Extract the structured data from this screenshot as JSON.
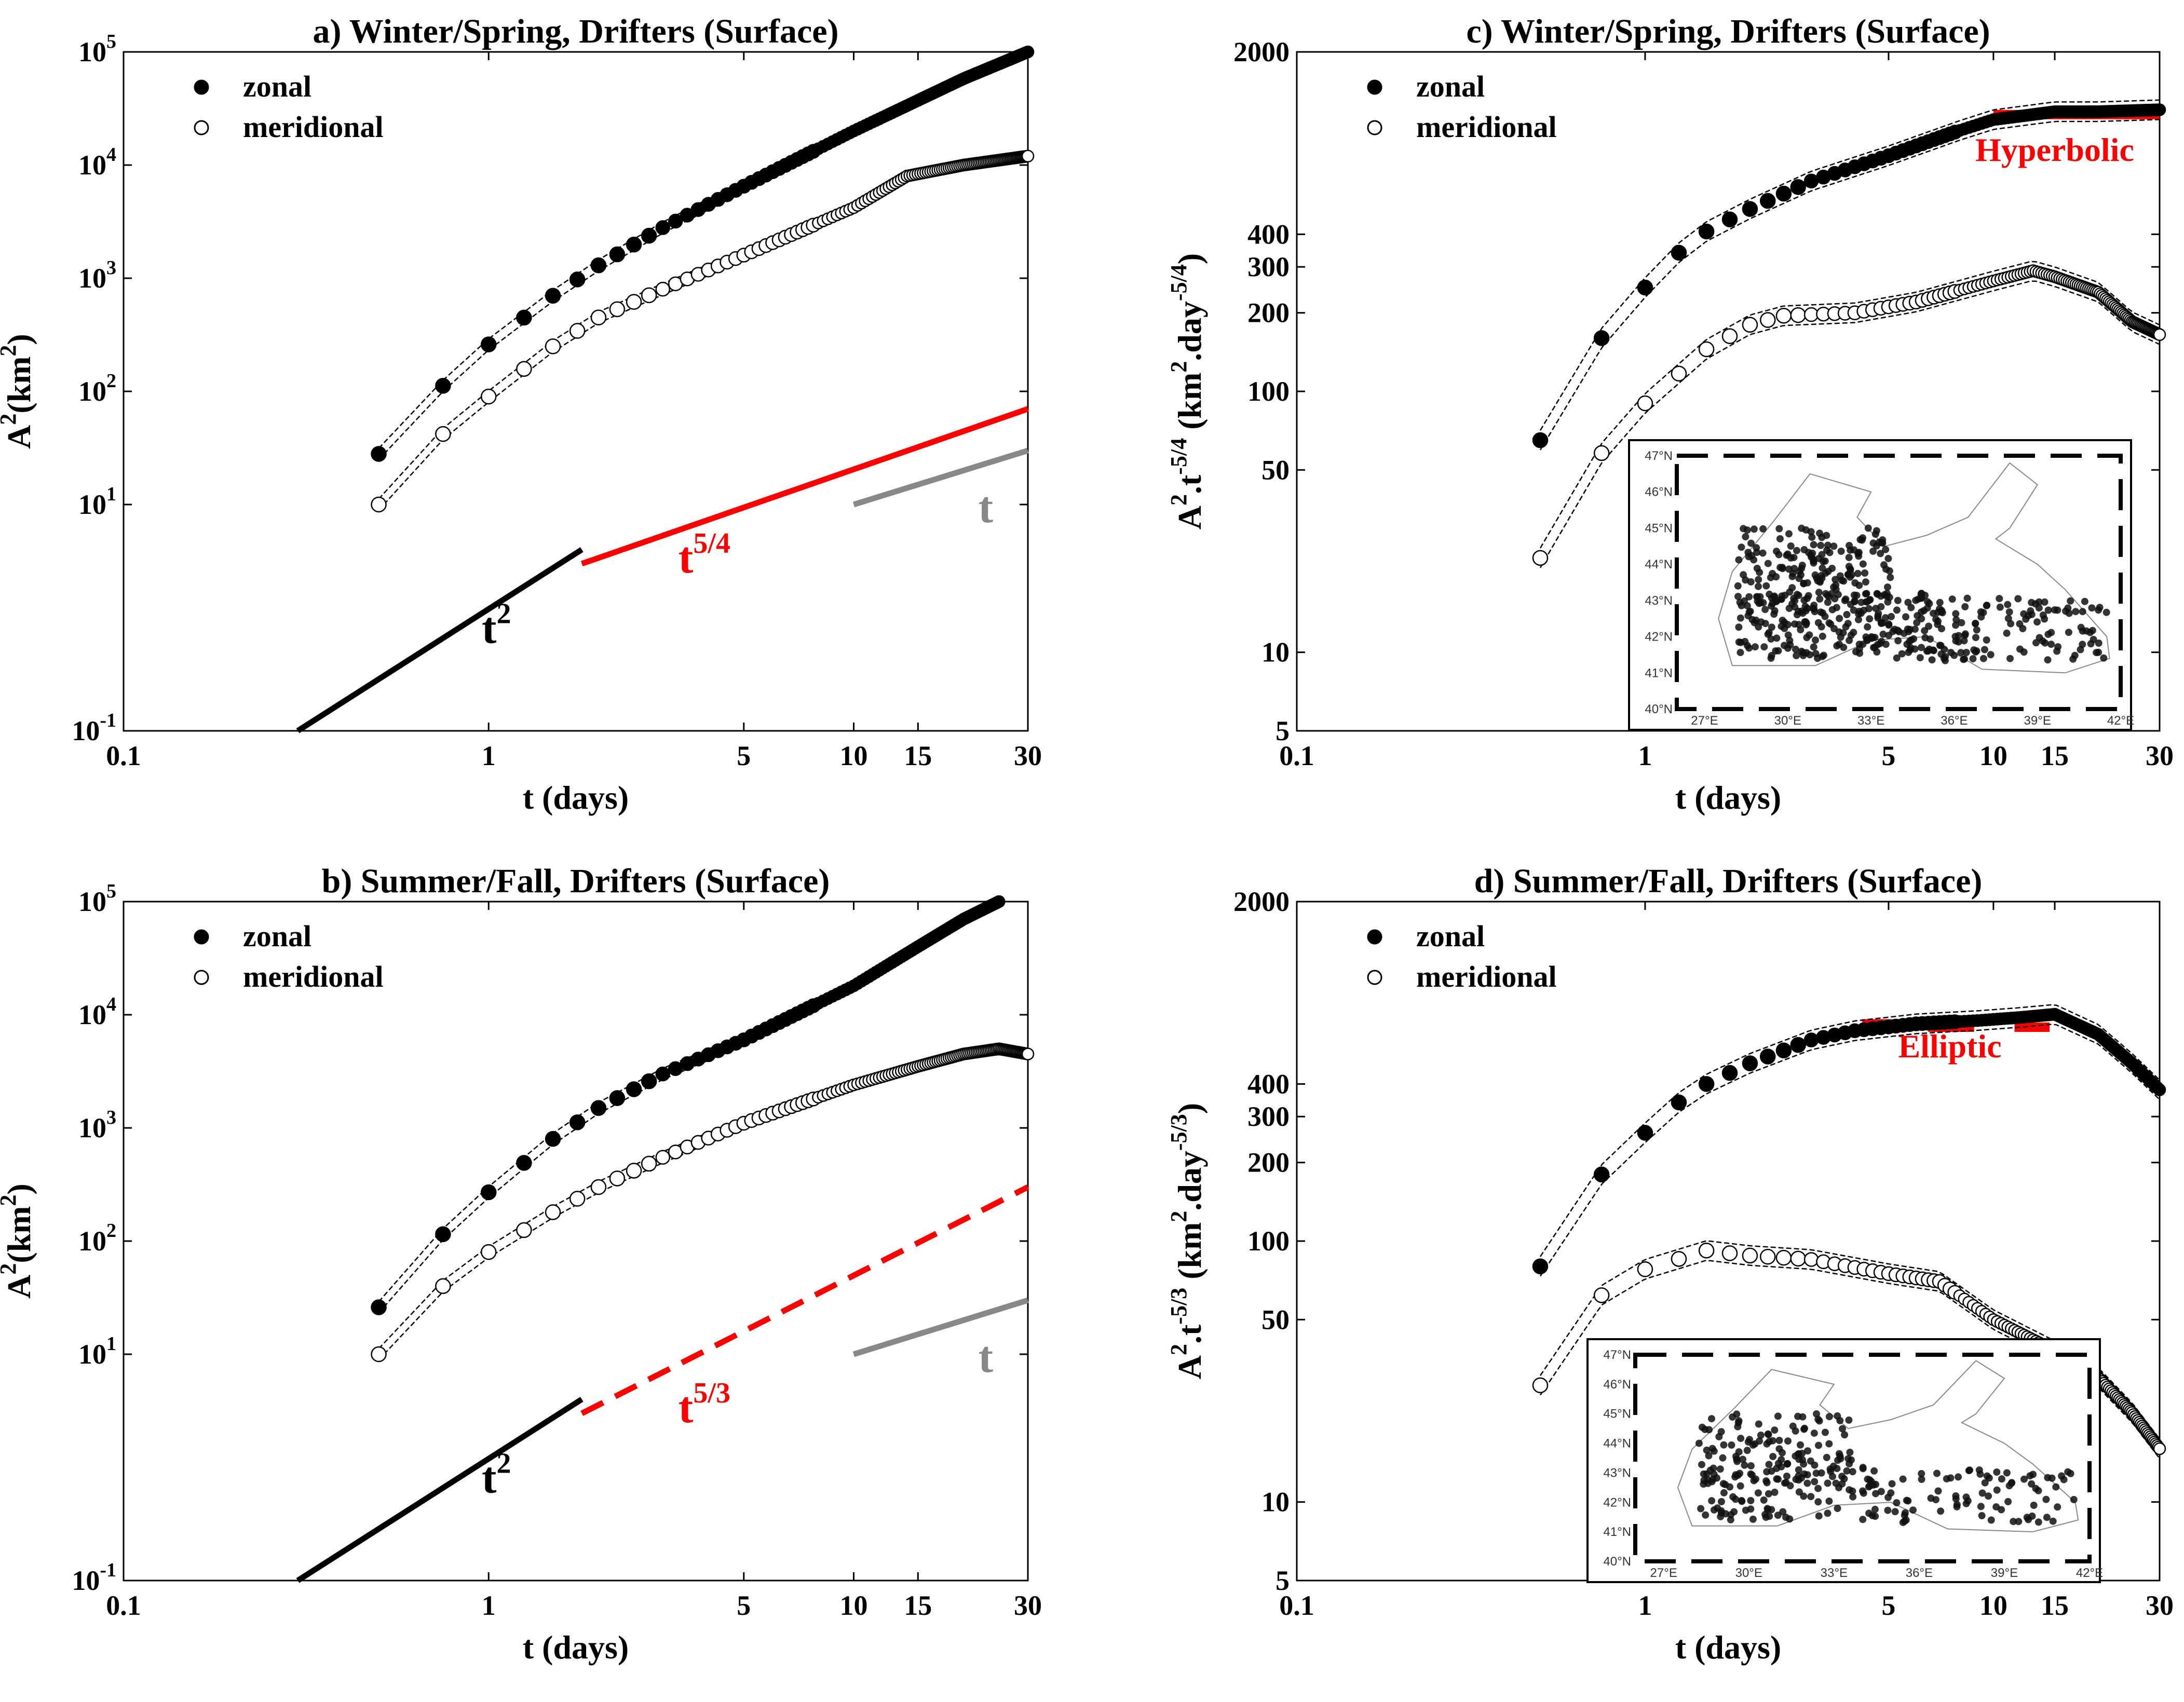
{
  "colors": {
    "axis": "#000000",
    "reference_t2": "#000000",
    "reference_red": "#ff0000",
    "reference_t": "#888888",
    "plateau": "#ff0000"
  },
  "chart_data": [
    {
      "id": "a",
      "type": "scatter",
      "title": "a) Winter/Spring, Drifters (Surface)",
      "xlabel": "t (days)",
      "ylabel_base": "A",
      "ylabel_sup": "2",
      "ylabel_unit": "(km",
      "ylabel_unit_sup": "2",
      "ylabel_unit_close": ")",
      "xscale": "log",
      "yscale": "log",
      "xlim": [
        0.1,
        30
      ],
      "ylim": [
        0.1,
        100000
      ],
      "xticks": [
        0.1,
        1,
        5,
        10,
        15,
        30
      ],
      "xtick_labels": [
        "0.1",
        "1",
        "5",
        "10",
        "15",
        "30"
      ],
      "yticks": [
        0.1,
        10,
        100,
        1000,
        10000,
        100000
      ],
      "ytick_base": "10",
      "ytick_exps": [
        "-1",
        "1",
        "2",
        "3",
        "4",
        "5"
      ],
      "legend": {
        "position": "top-left",
        "entries": [
          "zonal",
          "meridional"
        ]
      },
      "series": [
        {
          "name": "zonal",
          "marker": "filled",
          "anchors": [
            [
              0.5,
              28
            ],
            [
              0.75,
              112
            ],
            [
              1,
              260
            ],
            [
              1.5,
              700
            ],
            [
              2,
              1300
            ],
            [
              3,
              2800
            ],
            [
              5,
              6500
            ],
            [
              10,
              20000
            ],
            [
              20,
              58000
            ],
            [
              30,
              100000
            ]
          ]
        },
        {
          "name": "meridional",
          "marker": "open",
          "anchors": [
            [
              0.5,
              10
            ],
            [
              0.75,
              42
            ],
            [
              1,
              90
            ],
            [
              1.5,
              250
            ],
            [
              2,
              450
            ],
            [
              3,
              800
            ],
            [
              5,
              1600
            ],
            [
              10,
              4200
            ],
            [
              14,
              8000
            ],
            [
              20,
              10000
            ],
            [
              30,
              12000
            ]
          ]
        }
      ],
      "reference_lines": [
        {
          "label_base": "t",
          "label_sup": "2",
          "color": "#000000",
          "dashed": false,
          "from": [
            0.3,
            0.1
          ],
          "to": [
            1.8,
            4
          ],
          "label_at": [
            1.05,
            0.6
          ]
        },
        {
          "label_base": "t",
          "label_sup": "5/4",
          "color": "#ff0000",
          "dashed": false,
          "from": [
            1.8,
            3
          ],
          "to": [
            30,
            70
          ],
          "label_at": [
            3.9,
            2.5
          ]
        },
        {
          "label_base": "t",
          "label_sup": "",
          "color": "#888888",
          "dashed": false,
          "from": [
            10,
            10
          ],
          "to": [
            30,
            30
          ],
          "label_at": [
            23,
            7
          ]
        }
      ]
    },
    {
      "id": "b",
      "type": "scatter",
      "title": "b) Summer/Fall, Drifters (Surface)",
      "xlabel": "t (days)",
      "ylabel_base": "A",
      "ylabel_sup": "2",
      "ylabel_unit": "(km",
      "ylabel_unit_sup": "2",
      "ylabel_unit_close": ")",
      "xscale": "log",
      "yscale": "log",
      "xlim": [
        0.1,
        30
      ],
      "ylim": [
        0.1,
        100000
      ],
      "xticks": [
        0.1,
        1,
        5,
        10,
        15,
        30
      ],
      "xtick_labels": [
        "0.1",
        "1",
        "5",
        "10",
        "15",
        "30"
      ],
      "yticks": [
        0.1,
        10,
        100,
        1000,
        10000,
        100000
      ],
      "ytick_base": "10",
      "ytick_exps": [
        "-1",
        "1",
        "2",
        "3",
        "4",
        "5"
      ],
      "legend": {
        "position": "top-left",
        "entries": [
          "zonal",
          "meridional"
        ]
      },
      "series": [
        {
          "name": "zonal",
          "marker": "filled",
          "anchors": [
            [
              0.5,
              26
            ],
            [
              0.75,
              115
            ],
            [
              1,
              270
            ],
            [
              1.5,
              800
            ],
            [
              2,
              1500
            ],
            [
              3,
              3000
            ],
            [
              5,
              6000
            ],
            [
              10,
              18000
            ],
            [
              15,
              40000
            ],
            [
              20,
              70000
            ],
            [
              25,
              100000
            ]
          ]
        },
        {
          "name": "meridional",
          "marker": "open",
          "anchors": [
            [
              0.5,
              10
            ],
            [
              0.75,
              40
            ],
            [
              1,
              80
            ],
            [
              1.5,
              180
            ],
            [
              2,
              300
            ],
            [
              3,
              550
            ],
            [
              5,
              1100
            ],
            [
              10,
              2400
            ],
            [
              15,
              3500
            ],
            [
              20,
              4500
            ],
            [
              25,
              5000
            ],
            [
              30,
              4500
            ]
          ]
        }
      ],
      "reference_lines": [
        {
          "label_base": "t",
          "label_sup": "2",
          "color": "#000000",
          "dashed": false,
          "from": [
            0.3,
            0.1
          ],
          "to": [
            1.8,
            4
          ],
          "label_at": [
            1.05,
            0.6
          ]
        },
        {
          "label_base": "t",
          "label_sup": "5/3",
          "color": "#ff0000",
          "dashed": true,
          "from": [
            1.8,
            3
          ],
          "to": [
            30,
            300
          ],
          "label_at": [
            3.9,
            2.5
          ]
        },
        {
          "label_base": "t",
          "label_sup": "",
          "color": "#888888",
          "dashed": false,
          "from": [
            10,
            10
          ],
          "to": [
            30,
            30
          ],
          "label_at": [
            23,
            7
          ]
        }
      ]
    },
    {
      "id": "c",
      "type": "scatter",
      "title": "c) Winter/Spring, Drifters (Surface)",
      "xlabel": "t (days)",
      "ylabel_base": "A",
      "ylabel_sup": "2",
      "ylabel_mid": ".t",
      "ylabel_mid_sup": "-5/4",
      "ylabel_unit": "(km",
      "ylabel_unit_sup": "2",
      "ylabel_unit_mid": ".day",
      "ylabel_unit_mid_sup": "-5/4",
      "ylabel_unit_close": ")",
      "xscale": "log",
      "yscale": "log",
      "xlim": [
        0.1,
        30
      ],
      "ylim": [
        5,
        2000
      ],
      "xticks": [
        0.1,
        1,
        5,
        10,
        15,
        30
      ],
      "xtick_labels": [
        "0.1",
        "1",
        "5",
        "10",
        "15",
        "30"
      ],
      "yticks": [
        5,
        10,
        50,
        100,
        200,
        300,
        400,
        2000
      ],
      "ytick_labels": [
        "5",
        "10",
        "50",
        "100",
        "200",
        "300",
        "400",
        "2000"
      ],
      "legend": {
        "position": "top-left",
        "entries": [
          "zonal",
          "meridional"
        ]
      },
      "regime_label": "Hyperbolic",
      "plateaus": [
        [
          10,
          30,
          1150
        ]
      ],
      "series": [
        {
          "name": "zonal",
          "marker": "filled",
          "anchors": [
            [
              0.5,
              65
            ],
            [
              0.75,
              160
            ],
            [
              1,
              250
            ],
            [
              1.25,
              340
            ],
            [
              1.5,
              410
            ],
            [
              2,
              500
            ],
            [
              3,
              640
            ],
            [
              5,
              800
            ],
            [
              8,
              1000
            ],
            [
              10,
              1100
            ],
            [
              15,
              1180
            ],
            [
              20,
              1180
            ],
            [
              30,
              1200
            ]
          ]
        },
        {
          "name": "meridional",
          "marker": "open",
          "anchors": [
            [
              0.5,
              23
            ],
            [
              0.75,
              58
            ],
            [
              1,
              90
            ],
            [
              1.5,
              145
            ],
            [
              2,
              180
            ],
            [
              2.5,
              195
            ],
            [
              4,
              200
            ],
            [
              6,
              220
            ],
            [
              10,
              265
            ],
            [
              13,
              290
            ],
            [
              15,
              275
            ],
            [
              20,
              240
            ],
            [
              25,
              185
            ],
            [
              30,
              165
            ]
          ]
        }
      ],
      "inset": {
        "x_labels": [
          "27°E",
          "30°E",
          "33°E",
          "36°E",
          "39°E",
          "42°E"
        ],
        "y_labels": [
          "47°N",
          "46°N",
          "45°N",
          "44°N",
          "43°N",
          "42°N",
          "41°N",
          "40°N"
        ]
      }
    },
    {
      "id": "d",
      "type": "scatter",
      "title": "d) Summer/Fall, Drifters (Surface)",
      "xlabel": "t (days)",
      "ylabel_base": "A",
      "ylabel_sup": "2",
      "ylabel_mid": ".t",
      "ylabel_mid_sup": "-5/3",
      "ylabel_unit": "(km",
      "ylabel_unit_sup": "2",
      "ylabel_unit_mid": ".day",
      "ylabel_unit_mid_sup": "-5/3",
      "ylabel_unit_close": ")",
      "xscale": "log",
      "yscale": "log",
      "xlim": [
        0.1,
        30
      ],
      "ylim": [
        5,
        2000
      ],
      "xticks": [
        0.1,
        1,
        5,
        10,
        15,
        30
      ],
      "xtick_labels": [
        "0.1",
        "1",
        "5",
        "10",
        "15",
        "30"
      ],
      "yticks": [
        5,
        10,
        50,
        100,
        200,
        300,
        400,
        2000
      ],
      "ytick_labels": [
        "5",
        "10",
        "50",
        "100",
        "200",
        "300",
        "400",
        "2000"
      ],
      "legend": {
        "position": "top-left",
        "entries": [
          "zonal",
          "meridional"
        ]
      },
      "regime_label": "Elliptic",
      "plateaus": [
        [
          4.2,
          5.8,
          680
        ],
        [
          6.5,
          8.8,
          660
        ],
        [
          11.5,
          14.5,
          660
        ]
      ],
      "series": [
        {
          "name": "zonal",
          "marker": "filled",
          "anchors": [
            [
              0.5,
              80
            ],
            [
              0.75,
              180
            ],
            [
              1,
              260
            ],
            [
              1.25,
              340
            ],
            [
              1.5,
              400
            ],
            [
              2,
              480
            ],
            [
              3,
              590
            ],
            [
              4,
              640
            ],
            [
              6,
              680
            ],
            [
              9,
              700
            ],
            [
              12,
              720
            ],
            [
              15,
              740
            ],
            [
              20,
              620
            ],
            [
              25,
              480
            ],
            [
              30,
              380
            ]
          ]
        },
        {
          "name": "meridional",
          "marker": "open",
          "anchors": [
            [
              0.5,
              28
            ],
            [
              0.75,
              62
            ],
            [
              1,
              78
            ],
            [
              1.5,
              92
            ],
            [
              2,
              88
            ],
            [
              3,
              85
            ],
            [
              5,
              75
            ],
            [
              7,
              70
            ],
            [
              10,
              50
            ],
            [
              15,
              38
            ],
            [
              20,
              30
            ],
            [
              25,
              22
            ],
            [
              30,
              16
            ]
          ]
        }
      ],
      "inset": {
        "x_labels": [
          "27°E",
          "30°E",
          "33°E",
          "36°E",
          "39°E",
          "42°E"
        ],
        "y_labels": [
          "47°N",
          "46°N",
          "45°N",
          "44°N",
          "43°N",
          "42°N",
          "41°N",
          "40°N"
        ]
      }
    }
  ]
}
